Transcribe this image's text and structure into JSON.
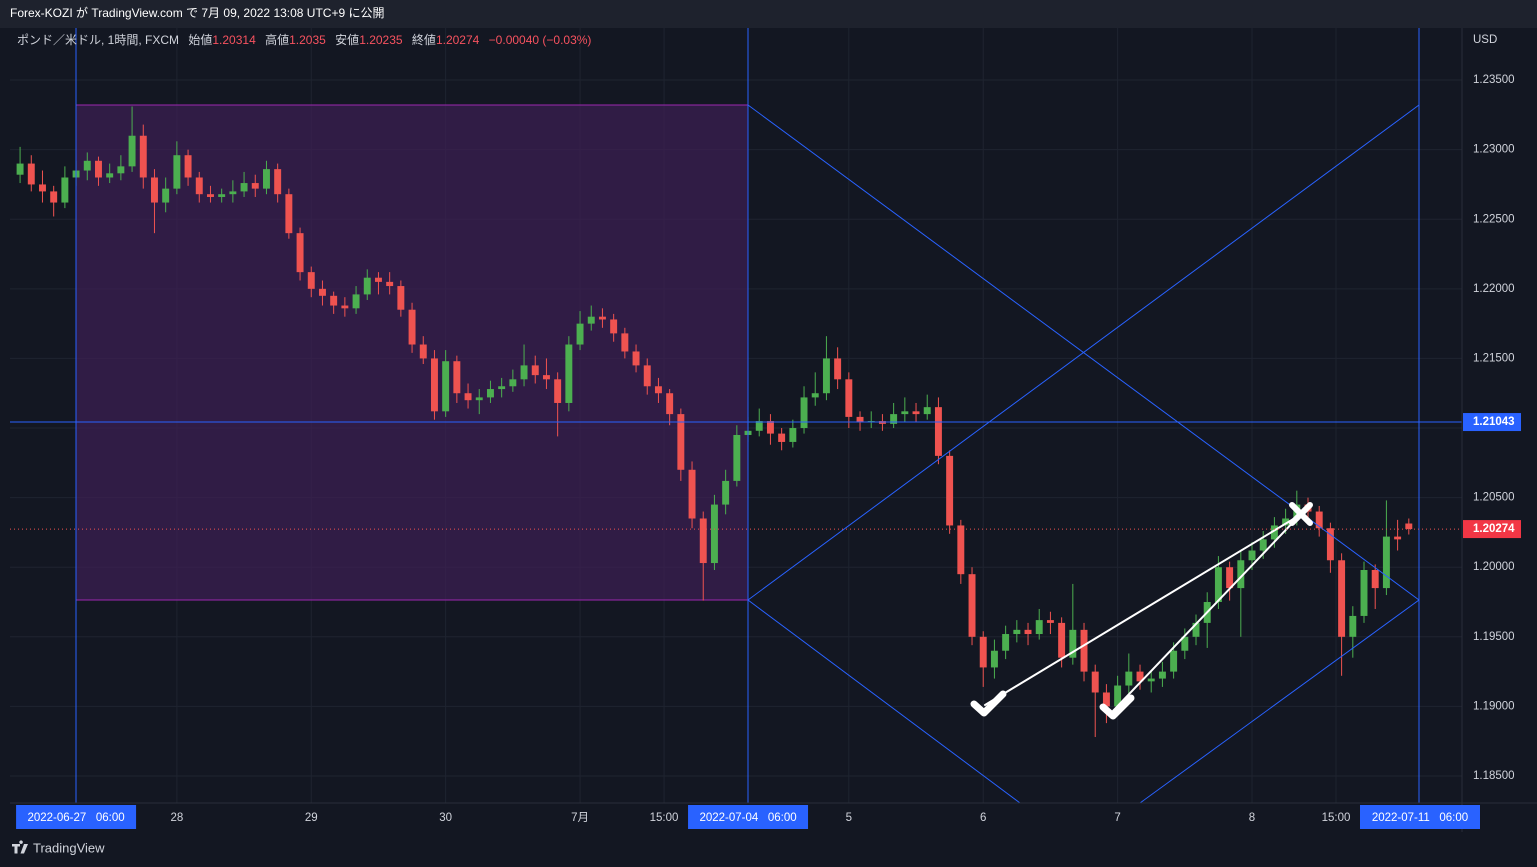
{
  "header": {
    "title": "Forex-KOZI が TradingView.com で 7月 09, 2022 13:08 UTC+9 に公開"
  },
  "footer": {
    "brand": "TradingView"
  },
  "chart_data": {
    "type": "candlestick",
    "currency": "USD",
    "legend": {
      "symbol": "ポンド／米ドル, 1時間, FXCM",
      "open_label": "始値",
      "open": 1.20314,
      "high_label": "高値",
      "high": 1.2035,
      "low_label": "安値",
      "low": 1.20235,
      "close_label": "終値",
      "close": 1.20274,
      "change": "−0.00040 (−0.03%)"
    },
    "up_color": "#4caf50",
    "down_color": "#ef5350",
    "ylim": [
      1.18306,
      1.23874
    ],
    "yticks": [
      {
        "value": 1.185,
        "label": "1.18500"
      },
      {
        "value": 1.19,
        "label": "1.19000"
      },
      {
        "value": 1.195,
        "label": "1.19500"
      },
      {
        "value": 1.2,
        "label": "1.20000"
      },
      {
        "value": 1.205,
        "label": "1.20500"
      },
      {
        "value": 1.21,
        "label": "1.21000"
      },
      {
        "value": 1.215,
        "label": "1.21500"
      },
      {
        "value": 1.22,
        "label": "1.22000"
      },
      {
        "value": 1.225,
        "label": "1.22500"
      },
      {
        "value": 1.23,
        "label": "1.23000"
      },
      {
        "value": 1.235,
        "label": "1.23500"
      }
    ],
    "xlim": [
      -0.9,
      128.75
    ],
    "xticks": [
      {
        "value": 5,
        "label": "2022-06-27   06:00"
      },
      {
        "value": 14,
        "label": "28"
      },
      {
        "value": 26,
        "label": "29"
      },
      {
        "value": 38,
        "label": "30"
      },
      {
        "value": 50,
        "label": "7月"
      },
      {
        "value": 57.5,
        "label": "15:00"
      },
      {
        "value": 65,
        "label": "2022-07-04   06:00"
      },
      {
        "value": 74,
        "label": "5"
      },
      {
        "value": 86,
        "label": "6"
      },
      {
        "value": 98,
        "label": "7"
      },
      {
        "value": 110,
        "label": "8"
      },
      {
        "value": 117.5,
        "label": "15:00"
      },
      {
        "value": 125,
        "label": "2022-07-11   06:00"
      }
    ],
    "grid": true,
    "hline": 1.21043,
    "last_price": 1.20274,
    "ohlc": [
      [
        1.2282,
        1.2302,
        1.2276,
        1.229
      ],
      [
        1.229,
        1.2296,
        1.227,
        1.2275
      ],
      [
        1.2275,
        1.2285,
        1.2262,
        1.227
      ],
      [
        1.227,
        1.2274,
        1.2252,
        1.2262
      ],
      [
        1.2262,
        1.2288,
        1.2258,
        1.228
      ],
      [
        1.228,
        1.2292,
        1.2274,
        1.2285
      ],
      [
        1.2285,
        1.2298,
        1.2278,
        1.2292
      ],
      [
        1.2292,
        1.2295,
        1.2274,
        1.228
      ],
      [
        1.228,
        1.229,
        1.2276,
        1.2283
      ],
      [
        1.2283,
        1.2296,
        1.2278,
        1.2288
      ],
      [
        1.2288,
        1.2331,
        1.2284,
        1.231
      ],
      [
        1.231,
        1.2318,
        1.2272,
        1.228
      ],
      [
        1.228,
        1.2286,
        1.224,
        1.2262
      ],
      [
        1.2262,
        1.228,
        1.2255,
        1.2272
      ],
      [
        1.2272,
        1.2306,
        1.2268,
        1.2296
      ],
      [
        1.2296,
        1.23,
        1.2274,
        1.228
      ],
      [
        1.228,
        1.2284,
        1.2262,
        1.2268
      ],
      [
        1.2268,
        1.2274,
        1.2262,
        1.2266
      ],
      [
        1.2266,
        1.2272,
        1.2262,
        1.2268
      ],
      [
        1.2268,
        1.2278,
        1.2262,
        1.227
      ],
      [
        1.227,
        1.2284,
        1.2266,
        1.2276
      ],
      [
        1.2276,
        1.2282,
        1.2266,
        1.2272
      ],
      [
        1.2272,
        1.2292,
        1.2268,
        1.2286
      ],
      [
        1.2286,
        1.229,
        1.2262,
        1.2268
      ],
      [
        1.2268,
        1.2272,
        1.2236,
        1.224
      ],
      [
        1.224,
        1.2244,
        1.2206,
        1.2212
      ],
      [
        1.2212,
        1.2216,
        1.2194,
        1.22
      ],
      [
        1.22,
        1.2206,
        1.2188,
        1.2195
      ],
      [
        1.2195,
        1.2198,
        1.2182,
        1.2188
      ],
      [
        1.2188,
        1.2194,
        1.218,
        1.2186
      ],
      [
        1.2186,
        1.2202,
        1.2182,
        1.2196
      ],
      [
        1.2196,
        1.2214,
        1.2192,
        1.2208
      ],
      [
        1.2208,
        1.2212,
        1.2196,
        1.2205
      ],
      [
        1.2205,
        1.2212,
        1.2196,
        1.2202
      ],
      [
        1.2202,
        1.2206,
        1.218,
        1.2185
      ],
      [
        1.2185,
        1.219,
        1.2154,
        1.216
      ],
      [
        1.216,
        1.2166,
        1.2146,
        1.215
      ],
      [
        1.215,
        1.2156,
        1.2106,
        1.2112
      ],
      [
        1.2112,
        1.2156,
        1.2108,
        1.2148
      ],
      [
        1.2148,
        1.2152,
        1.2118,
        1.2125
      ],
      [
        1.2125,
        1.2132,
        1.2114,
        1.212
      ],
      [
        1.212,
        1.2128,
        1.211,
        1.2122
      ],
      [
        1.2122,
        1.2134,
        1.2118,
        1.2128
      ],
      [
        1.2128,
        1.2136,
        1.2122,
        1.213
      ],
      [
        1.213,
        1.2142,
        1.2126,
        1.2135
      ],
      [
        1.2135,
        1.216,
        1.213,
        1.2145
      ],
      [
        1.2145,
        1.2152,
        1.2132,
        1.2138
      ],
      [
        1.2138,
        1.215,
        1.2128,
        1.2135
      ],
      [
        1.2135,
        1.214,
        1.2094,
        1.2118
      ],
      [
        1.2118,
        1.2166,
        1.2112,
        1.216
      ],
      [
        1.216,
        1.2184,
        1.2156,
        1.2175
      ],
      [
        1.2175,
        1.2188,
        1.217,
        1.218
      ],
      [
        1.218,
        1.2186,
        1.2172,
        1.2178
      ],
      [
        1.2178,
        1.2182,
        1.2162,
        1.2168
      ],
      [
        1.2168,
        1.2172,
        1.215,
        1.2155
      ],
      [
        1.2155,
        1.216,
        1.214,
        1.2145
      ],
      [
        1.2145,
        1.215,
        1.2124,
        1.213
      ],
      [
        1.213,
        1.2136,
        1.2118,
        1.2125
      ],
      [
        1.2125,
        1.2128,
        1.2102,
        1.211
      ],
      [
        1.211,
        1.2114,
        1.2062,
        1.207
      ],
      [
        1.207,
        1.2076,
        1.2028,
        1.2035
      ],
      [
        1.2035,
        1.204,
        1.1976,
        1.2003
      ],
      [
        1.2003,
        1.2052,
        1.1998,
        1.2045
      ],
      [
        1.2045,
        1.207,
        1.2038,
        1.2062
      ],
      [
        1.2062,
        1.2102,
        1.2058,
        1.2095
      ],
      [
        1.2095,
        1.2108,
        1.209,
        1.2098
      ],
      [
        1.2098,
        1.2114,
        1.2094,
        1.2105
      ],
      [
        1.2105,
        1.211,
        1.2088,
        1.2096
      ],
      [
        1.2096,
        1.21,
        1.2084,
        1.209
      ],
      [
        1.209,
        1.2106,
        1.2086,
        1.21
      ],
      [
        1.21,
        1.213,
        1.2096,
        1.2122
      ],
      [
        1.2122,
        1.214,
        1.2116,
        1.2125
      ],
      [
        1.2125,
        1.2166,
        1.212,
        1.215
      ],
      [
        1.215,
        1.2158,
        1.2128,
        1.2135
      ],
      [
        1.2135,
        1.214,
        1.21,
        1.2108
      ],
      [
        1.2108,
        1.2112,
        1.2098,
        1.2104
      ],
      [
        1.2104,
        1.2112,
        1.21,
        1.2105
      ],
      [
        1.2105,
        1.211,
        1.2098,
        1.2103
      ],
      [
        1.2103,
        1.2118,
        1.21,
        1.211
      ],
      [
        1.211,
        1.2122,
        1.2104,
        1.2112
      ],
      [
        1.2112,
        1.2118,
        1.2104,
        1.211
      ],
      [
        1.211,
        1.2124,
        1.2106,
        1.2115
      ],
      [
        1.2115,
        1.2122,
        1.2074,
        1.208
      ],
      [
        1.208,
        1.2084,
        1.2024,
        1.203
      ],
      [
        1.203,
        1.2034,
        1.1988,
        1.1995
      ],
      [
        1.1995,
        1.2,
        1.1944,
        1.195
      ],
      [
        1.195,
        1.1954,
        1.1914,
        1.1928
      ],
      [
        1.1928,
        1.1948,
        1.192,
        1.194
      ],
      [
        1.194,
        1.1958,
        1.1934,
        1.1952
      ],
      [
        1.1952,
        1.1962,
        1.1946,
        1.1955
      ],
      [
        1.1955,
        1.196,
        1.1944,
        1.1952
      ],
      [
        1.1952,
        1.197,
        1.1948,
        1.1962
      ],
      [
        1.1962,
        1.1968,
        1.1952,
        1.196
      ],
      [
        1.196,
        1.1964,
        1.1928,
        1.1935
      ],
      [
        1.1935,
        1.1988,
        1.193,
        1.1955
      ],
      [
        1.1955,
        1.196,
        1.1918,
        1.1925
      ],
      [
        1.1925,
        1.193,
        1.1878,
        1.191
      ],
      [
        1.191,
        1.1916,
        1.1888,
        1.19
      ],
      [
        1.19,
        1.1922,
        1.1894,
        1.1915
      ],
      [
        1.1915,
        1.1938,
        1.1908,
        1.1925
      ],
      [
        1.1925,
        1.193,
        1.1912,
        1.1918
      ],
      [
        1.1918,
        1.1926,
        1.191,
        1.192
      ],
      [
        1.192,
        1.1932,
        1.1914,
        1.1925
      ],
      [
        1.1925,
        1.1946,
        1.192,
        1.194
      ],
      [
        1.194,
        1.1956,
        1.1934,
        1.195
      ],
      [
        1.195,
        1.1966,
        1.1944,
        1.196
      ],
      [
        1.196,
        1.1982,
        1.1942,
        1.1975
      ],
      [
        1.1975,
        1.2008,
        1.197,
        1.2
      ],
      [
        1.2,
        1.2004,
        1.1976,
        1.1985
      ],
      [
        1.1985,
        1.2012,
        1.195,
        1.2005
      ],
      [
        1.2005,
        1.2018,
        1.1998,
        1.2012
      ],
      [
        1.2012,
        1.2026,
        1.2006,
        1.202
      ],
      [
        1.202,
        1.2036,
        1.2014,
        1.203
      ],
      [
        1.203,
        1.2042,
        1.2024,
        1.2035
      ],
      [
        1.2035,
        1.2055,
        1.203,
        1.2045
      ],
      [
        1.2045,
        1.205,
        1.2032,
        1.204
      ],
      [
        1.204,
        1.2044,
        1.2022,
        1.2028
      ],
      [
        1.2028,
        1.2032,
        1.1996,
        1.2005
      ],
      [
        1.2005,
        1.201,
        1.1922,
        1.195
      ],
      [
        1.195,
        1.1972,
        1.1935,
        1.1965
      ],
      [
        1.1965,
        1.2004,
        1.196,
        1.1998
      ],
      [
        1.1998,
        1.2002,
        1.197,
        1.1985
      ],
      [
        1.1985,
        1.2048,
        1.198,
        1.2022
      ],
      [
        1.2022,
        1.2034,
        1.2012,
        1.202
      ],
      [
        1.20314,
        1.2035,
        1.20235,
        1.20274
      ]
    ]
  }
}
